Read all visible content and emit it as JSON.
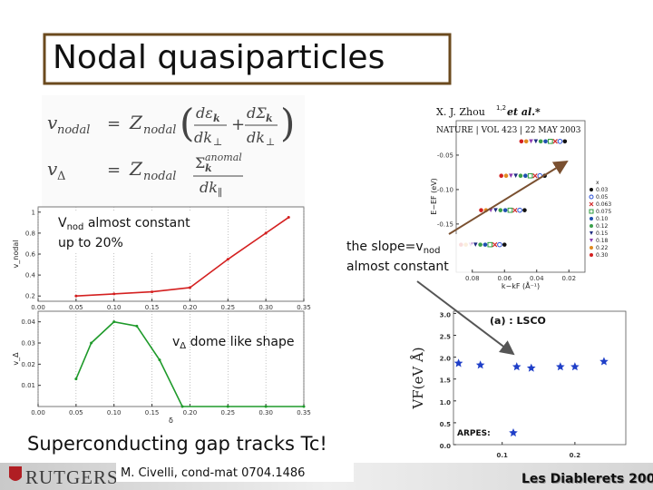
{
  "title": "Nodal quasiparticles",
  "equations": [
    [
      "v",
      "nodal",
      "=",
      "Z",
      "nodal",
      "(",
      "dε",
      "k",
      "dk",
      "⊥",
      "+",
      "dΣ",
      "k",
      "dk",
      "⊥",
      ")"
    ],
    [
      "v",
      "Δ",
      "=",
      "Z",
      "nodal",
      "Σ",
      "k",
      "anomal",
      "dk",
      "∥"
    ]
  ],
  "notes": {
    "vnod": [
      "V",
      "nod",
      " almost constant",
      "up to 20%"
    ],
    "vdelta": [
      "v",
      "Δ",
      " dome like shape"
    ],
    "slope": [
      "the slope=v",
      "nod",
      "almost constant"
    ],
    "headline": "Superconducting gap tracks Tc!",
    "reference": "M. Civelli, cond-mat 0704.1486",
    "logo": "RUTGERS",
    "conference": "Les Diablerets 2007"
  },
  "chart_data": [
    {
      "type": "line",
      "ylabel": "v_nodal",
      "grid": true,
      "xlim": [
        0,
        0.35
      ],
      "ylim": [
        0.15,
        1.05
      ],
      "xticks": [
        {
          "value": 0,
          "label": "0.00"
        },
        0.05,
        {
          "value": 0.1,
          "label": "0.10"
        },
        0.15,
        {
          "value": 0.2,
          "label": "0.20"
        },
        0.25,
        {
          "value": 0.3,
          "label": "0.30"
        },
        0.35
      ],
      "yticks": [
        0.2,
        0.4,
        0.6,
        0.8,
        1
      ],
      "series": [
        {
          "color": "#d42020",
          "marker": "circle",
          "x": [
            0.05,
            0.1,
            0.15,
            0.2,
            0.25,
            0.3,
            0.33
          ],
          "values": [
            0.2,
            0.22,
            0.24,
            0.28,
            0.55,
            0.8,
            0.95
          ]
        }
      ]
    },
    {
      "type": "line",
      "xlabel": "δ",
      "ylabel": "v_Δ",
      "grid": true,
      "xlim": [
        0,
        0.35
      ],
      "ylim": [
        0,
        0.045
      ],
      "xticks": [
        {
          "value": 0,
          "label": "0.00"
        },
        0.05,
        {
          "value": 0.1,
          "label": "0.10"
        },
        0.15,
        {
          "value": 0.2,
          "label": "0.20"
        },
        0.25,
        {
          "value": 0.3,
          "label": "0.30"
        },
        0.35
      ],
      "yticks": [
        0.01,
        0.02,
        0.03,
        0.04
      ],
      "series": [
        {
          "color": "#1e9a2a",
          "marker": "circle",
          "x": [
            0.05,
            0.07,
            0.1,
            0.13,
            0.16,
            0.19,
            0.25,
            0.3,
            0.35
          ],
          "values": [
            0.013,
            0.03,
            0.04,
            0.038,
            0.022,
            0,
            0,
            0,
            0
          ]
        }
      ]
    },
    {
      "type": "scatter",
      "title": "(a) : LSCO",
      "ylabel": "VF(eV Å)",
      "xlim": [
        0.033,
        0.27
      ],
      "ylim": [
        0,
        3.05
      ],
      "xticks": [
        0.1,
        0.2
      ],
      "yticks": [
        {
          "value": 0,
          "label": "0.0"
        },
        0.5,
        {
          "value": 1,
          "label": "1.0"
        },
        1.5,
        {
          "value": 2,
          "label": "2.0"
        },
        2.5,
        {
          "value": 3,
          "label": "3.0"
        }
      ],
      "legend": "bottom-left",
      "series": [
        {
          "name": "ARPES:",
          "color": "#1f3fc8",
          "marker": "star",
          "x": [
            0.04,
            0.07,
            0.12,
            0.14,
            0.18,
            0.2,
            0.24
          ],
          "values": [
            1.86,
            1.82,
            1.78,
            1.75,
            1.78,
            1.78,
            1.9
          ]
        }
      ]
    },
    {
      "type": "scatter",
      "citation": [
        "X. J. Zhou",
        "1,2",
        "et al.*",
        "NATURE | VOL 423 | 22 MAY 2003"
      ],
      "xlabel": "k−kF (Å⁻¹)",
      "ylabel": "E−EF (eV)",
      "legend_title": "x",
      "legend": "right",
      "xlim": [
        0.09,
        0.01
      ],
      "ylim": [
        -0.22,
        0
      ],
      "xticks": [
        0.08,
        0.06,
        0.04,
        0.02
      ],
      "yticks": [
        -0.05,
        {
          "value": -0.1,
          "label": "-0.10"
        },
        -0.15
      ],
      "series": [
        {
          "name": "0.03",
          "color": "#111111",
          "marker": "circle",
          "x": [
            0.0225,
            0.035,
            0.0475,
            0.06
          ],
          "values": [
            -0.03,
            -0.08,
            -0.13,
            -0.18
          ]
        },
        {
          "name": "0.05",
          "color": "#2a4fd6",
          "marker": "open-circle",
          "x": [
            0.0255,
            0.038,
            0.0505,
            0.063
          ],
          "values": [
            -0.03,
            -0.08,
            -0.13,
            -0.18
          ]
        },
        {
          "name": "0.063",
          "color": "#d02a2a",
          "marker": "cross",
          "x": [
            0.0285,
            0.041,
            0.0535,
            0.066
          ],
          "values": [
            -0.03,
            -0.08,
            -0.13,
            -0.18
          ]
        },
        {
          "name": "0.075",
          "color": "#2a9a3a",
          "marker": "open-square",
          "x": [
            0.0315,
            0.044,
            0.0565,
            0.069
          ],
          "values": [
            -0.03,
            -0.08,
            -0.13,
            -0.18
          ]
        },
        {
          "name": "0.10",
          "color": "#1f4fb0",
          "marker": "circle",
          "x": [
            0.0345,
            0.047,
            0.0595,
            0.072
          ],
          "values": [
            -0.03,
            -0.08,
            -0.13,
            -0.18
          ]
        },
        {
          "name": "0.12",
          "color": "#3aa04a",
          "marker": "circle",
          "x": [
            0.0375,
            0.05,
            0.0625,
            0.075
          ],
          "values": [
            -0.03,
            -0.08,
            -0.13,
            -0.18
          ]
        },
        {
          "name": "0.15",
          "color": "#1d2a80",
          "marker": "triangle",
          "x": [
            0.0405,
            0.053,
            0.0655,
            0.078
          ],
          "values": [
            -0.03,
            -0.08,
            -0.13,
            -0.18
          ]
        },
        {
          "name": "0.18",
          "color": "#8a3ab0",
          "marker": "triangle",
          "x": [
            0.0435,
            0.056,
            0.0685,
            0.081
          ],
          "values": [
            -0.03,
            -0.08,
            -0.13,
            -0.18
          ]
        },
        {
          "name": "0.22",
          "color": "#e08a20",
          "marker": "circle",
          "x": [
            0.0465,
            0.059,
            0.0715,
            0.084
          ],
          "values": [
            -0.03,
            -0.08,
            -0.13,
            -0.18
          ]
        },
        {
          "name": "0.30",
          "color": "#d42020",
          "marker": "circle",
          "x": [
            0.0495,
            0.062,
            0.0745,
            0.087
          ],
          "values": [
            -0.03,
            -0.08,
            -0.13,
            -0.18
          ]
        }
      ]
    }
  ]
}
